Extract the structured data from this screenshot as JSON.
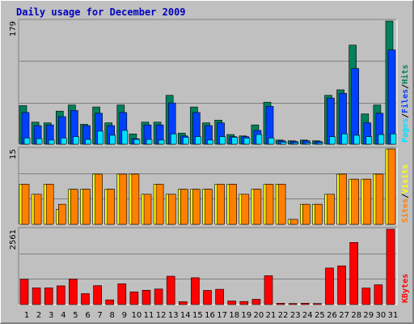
{
  "chart_data": {
    "type": "bar",
    "title": "Daily usage for December 2009",
    "colors": {
      "background": "#c0c0c0",
      "hits": "#00805c",
      "files": "#0040ff",
      "pages": "#00e0ff",
      "visits": "#ffff00",
      "sites": "#ff8000",
      "kbytes": "#ff0000",
      "weekend_label": "#00805c",
      "title": "#0000c0",
      "separator": "#000000"
    },
    "categories": [
      "1",
      "2",
      "3",
      "4",
      "5",
      "6",
      "7",
      "8",
      "9",
      "10",
      "11",
      "12",
      "13",
      "14",
      "15",
      "16",
      "17",
      "18",
      "19",
      "20",
      "21",
      "22",
      "23",
      "24",
      "25",
      "26",
      "27",
      "28",
      "29",
      "30",
      "31"
    ],
    "weekend_days": [
      "5",
      "6",
      "12",
      "13",
      "19",
      "20",
      "26",
      "27"
    ],
    "panels": [
      {
        "id": "hits-files-pages",
        "ymax_label": "179",
        "ymax": 179,
        "legend": [
          {
            "text": "Pages",
            "series": "pages"
          },
          {
            "text": "/",
            "series": "separator"
          },
          {
            "text": "Files",
            "series": "files"
          },
          {
            "text": "/",
            "series": "separator"
          },
          {
            "text": "Hits",
            "series": "hits"
          }
        ],
        "series": [
          {
            "key": "hits",
            "values": [
              56,
              32,
              31,
              48,
              57,
              29,
              54,
              31,
              57,
              15,
              32,
              32,
              71,
              16,
              54,
              31,
              35,
              14,
              12,
              28,
              61,
              6,
              5,
              6,
              5,
              71,
              79,
              144,
              44,
              57,
              179
            ]
          },
          {
            "key": "files",
            "values": [
              46,
              27,
              28,
              40,
              49,
              27,
              45,
              27,
              46,
              8,
              28,
              28,
              60,
              12,
              46,
              27,
              31,
              11,
              11,
              20,
              55,
              5,
              4,
              5,
              4,
              67,
              74,
              110,
              31,
              45,
              137
            ]
          },
          {
            "key": "pages",
            "values": [
              9,
              8,
              6,
              9,
              11,
              7,
              19,
              13,
              20,
              7,
              7,
              6,
              15,
              10,
              11,
              6,
              11,
              10,
              9,
              14,
              9,
              3,
              2,
              2,
              2,
              11,
              15,
              13,
              11,
              14,
              15
            ]
          }
        ]
      },
      {
        "id": "visits-sites",
        "ymax_label": "15",
        "ymax": 15,
        "legend": [
          {
            "text": "Sites",
            "series": "sites"
          },
          {
            "text": "/",
            "series": "separator"
          },
          {
            "text": "Visits",
            "series": "visits"
          }
        ],
        "series": [
          {
            "key": "visits",
            "values": [
              8,
              6,
              8,
              3,
              7,
              7,
              10,
              7,
              10,
              10,
              6,
              8,
              6,
              7,
              7,
              7,
              8,
              8,
              6,
              7,
              8,
              8,
              1,
              4,
              4,
              6,
              10,
              9,
              9,
              10,
              15
            ]
          },
          {
            "key": "sites",
            "values": [
              8,
              6,
              8,
              4,
              7,
              7,
              10,
              7,
              10,
              10,
              6,
              8,
              6,
              7,
              7,
              7,
              8,
              8,
              6,
              7,
              8,
              8,
              1,
              4,
              4,
              6,
              10,
              9,
              9,
              10,
              15
            ]
          }
        ]
      },
      {
        "id": "kbytes",
        "ymax_label": "2561",
        "ymax": 2561,
        "legend": [
          {
            "text": "KBytes",
            "series": "kbytes"
          }
        ],
        "series": [
          {
            "key": "kbytes",
            "values": [
              862,
              567,
              567,
              636,
              868,
              371,
              644,
              160,
              708,
              430,
              488,
              528,
              965,
              96,
              912,
              482,
              521,
              120,
              105,
              180,
              980,
              44,
              36,
              48,
              36,
              1241,
              1316,
              2111,
              561,
              673,
              2561
            ]
          }
        ]
      }
    ]
  }
}
